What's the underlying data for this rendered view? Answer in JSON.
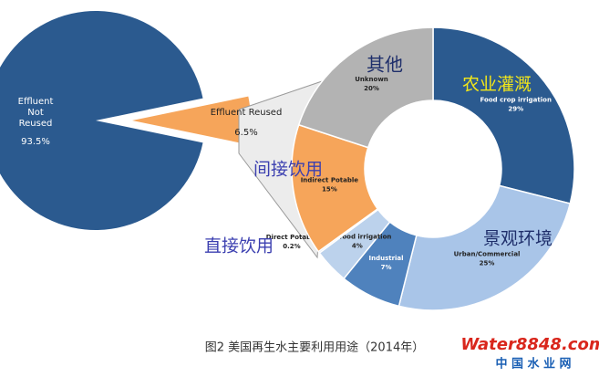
{
  "chart_data": [
    {
      "type": "pie",
      "categories": [
        "Effluent Not Reused",
        "Effluent Reused"
      ],
      "values": [
        93.5,
        6.5
      ],
      "value_labels": [
        "93.5%",
        "6.5%"
      ],
      "colors": [
        "#2b5a8f",
        "#f6a55a"
      ]
    },
    {
      "type": "donut",
      "categories": [
        "Food crop irrigation",
        "Urban/Commercial",
        "Industrial",
        "Non food irrigation",
        "Direct Potable",
        "Indirect Potable",
        "Unknown"
      ],
      "values": [
        29,
        25,
        7,
        4,
        0.2,
        15,
        20
      ],
      "value_labels": [
        "29%",
        "25%",
        "7%",
        "4%",
        "0.2%",
        "15%",
        "20%"
      ],
      "colors": [
        "#2b5a8f",
        "#a9c5e8",
        "#4f82bd",
        "#bcd2ec",
        "#d6e3f3",
        "#f6a55a",
        "#b3b3b3"
      ],
      "annotations": [
        {
          "text": "其他",
          "color": "#1f2f6b"
        },
        {
          "text": "农业灌溉",
          "color": "#f2e61a"
        },
        {
          "text": "间接饮用",
          "color": "#3b3fb0"
        },
        {
          "text": "景观环境",
          "color": "#1f2f6b"
        },
        {
          "text": "直接饮用",
          "color": "#3b3fb0"
        }
      ]
    }
  ],
  "caption": "图2 美国再生水主要利用用途（2014年）",
  "watermark": {
    "site": "Water8848.com",
    "name": "中 国 水 业 网"
  }
}
